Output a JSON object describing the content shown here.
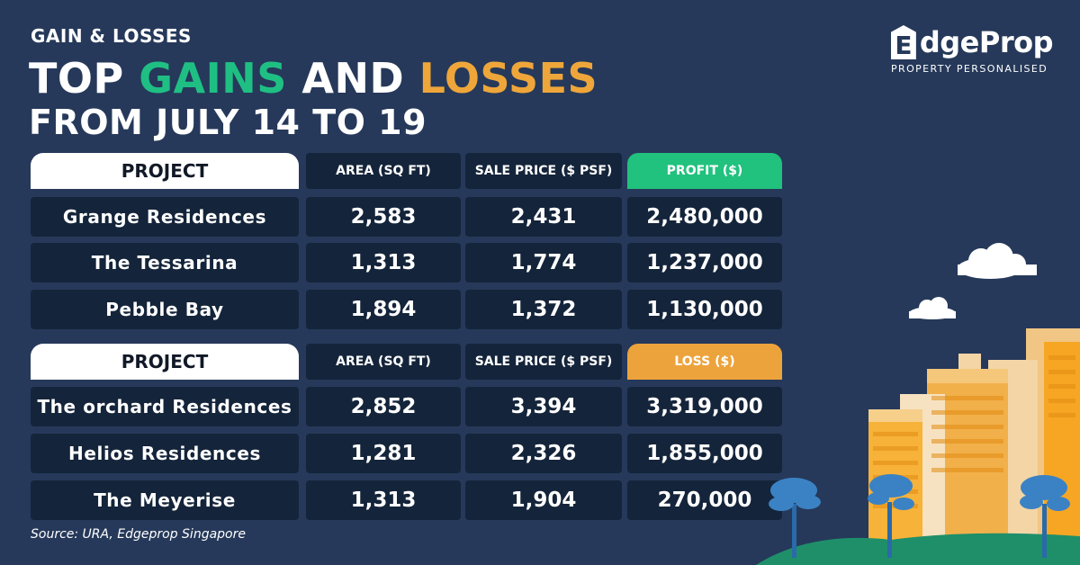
{
  "header": {
    "kicker": "GAIN & LOSSES",
    "title_part1": "TOP ",
    "title_gains": "GAINS",
    "title_part2": " AND ",
    "title_losses": "LOSSES",
    "subtitle": "FROM JULY 14 TO 19"
  },
  "logo": {
    "mark": "E",
    "name": "dgeProp",
    "tagline": "PROPERTY PERSONALISED"
  },
  "gains_table": {
    "headers": [
      "PROJECT",
      "AREA (SQ FT)",
      "SALE PRICE ($ PSF)",
      "PROFIT ($)"
    ],
    "rows": [
      [
        "Grange Residences",
        "2,583",
        "2,431",
        "2,480,000"
      ],
      [
        "The Tessarina",
        "1,313",
        "1,774",
        "1,237,000"
      ],
      [
        "Pebble Bay",
        "1,894",
        "1,372",
        "1,130,000"
      ]
    ]
  },
  "losses_table": {
    "headers": [
      "PROJECT",
      "AREA (SQ FT)",
      "SALE PRICE ($ PSF)",
      "LOSS ($)"
    ],
    "rows": [
      [
        "The orchard Residences",
        "2,852",
        "3,394",
        "3,319,000"
      ],
      [
        "Helios Residences",
        "1,281",
        "2,326",
        "1,855,000"
      ],
      [
        "The Meyerise",
        "1,313",
        "1,904",
        "270,000"
      ]
    ]
  },
  "source": "Source: URA, Edgeprop Singapore",
  "colors": {
    "background": "#26395a",
    "cell": "#14243a",
    "gain": "#21c17e",
    "loss": "#eda33c"
  }
}
